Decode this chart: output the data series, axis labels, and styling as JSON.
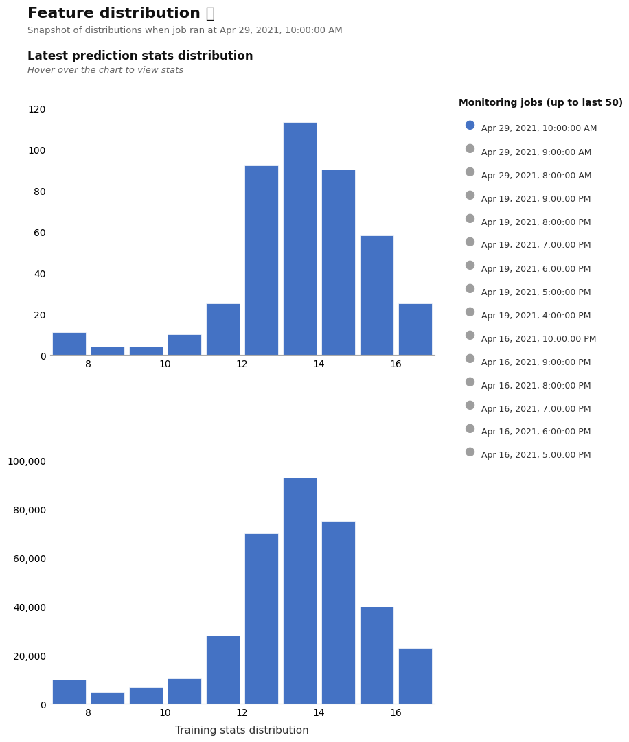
{
  "title": "Feature distribution ❓",
  "subtitle": "Snapshot of distributions when job ran at Apr 29, 2021, 10:00:00 AM",
  "section_title": "Latest prediction stats distribution",
  "section_subtitle": "Hover over the chart to view stats",
  "bar_color": "#4472C4",
  "background_color": "#ffffff",
  "top_hist": {
    "bin_centers": [
      7.5,
      8.5,
      9.5,
      10.5,
      11.5,
      12.5,
      13.5,
      14.5,
      15.5,
      16.5
    ],
    "values": [
      11,
      4,
      4,
      10,
      25,
      92,
      113,
      90,
      58,
      25
    ],
    "xlim": [
      7,
      17
    ],
    "ylim": [
      0,
      130
    ],
    "yticks": [
      0,
      20,
      40,
      60,
      80,
      100,
      120
    ],
    "xticks": [
      8,
      10,
      12,
      14,
      16
    ]
  },
  "bottom_hist": {
    "bin_centers": [
      7.5,
      8.5,
      9.5,
      10.5,
      11.5,
      12.5,
      13.5,
      14.5,
      15.5,
      16.5
    ],
    "values": [
      10000,
      5000,
      7000,
      10500,
      28000,
      70000,
      93000,
      75000,
      40000,
      23000
    ],
    "xlim": [
      7,
      17
    ],
    "ylim": [
      0,
      110000
    ],
    "yticks": [
      0,
      20000,
      40000,
      60000,
      80000,
      100000
    ],
    "xticks": [
      8,
      10,
      12,
      14,
      16
    ],
    "xlabel": "Training stats distribution"
  },
  "legend": {
    "title": "Monitoring jobs (up to last 50)",
    "entries": [
      {
        "label": "Apr 29, 2021, 10:00:00 AM",
        "color": "#4472C4"
      },
      {
        "label": "Apr 29, 2021, 9:00:00 AM",
        "color": "#9E9E9E"
      },
      {
        "label": "Apr 29, 2021, 8:00:00 AM",
        "color": "#9E9E9E"
      },
      {
        "label": "Apr 19, 2021, 9:00:00 PM",
        "color": "#9E9E9E"
      },
      {
        "label": "Apr 19, 2021, 8:00:00 PM",
        "color": "#9E9E9E"
      },
      {
        "label": "Apr 19, 2021, 7:00:00 PM",
        "color": "#9E9E9E"
      },
      {
        "label": "Apr 19, 2021, 6:00:00 PM",
        "color": "#9E9E9E"
      },
      {
        "label": "Apr 19, 2021, 5:00:00 PM",
        "color": "#9E9E9E"
      },
      {
        "label": "Apr 19, 2021, 4:00:00 PM",
        "color": "#9E9E9E"
      },
      {
        "label": "Apr 16, 2021, 10:00:00 PM",
        "color": "#9E9E9E"
      },
      {
        "label": "Apr 16, 2021, 9:00:00 PM",
        "color": "#9E9E9E"
      },
      {
        "label": "Apr 16, 2021, 8:00:00 PM",
        "color": "#9E9E9E"
      },
      {
        "label": "Apr 16, 2021, 7:00:00 PM",
        "color": "#9E9E9E"
      },
      {
        "label": "Apr 16, 2021, 6:00:00 PM",
        "color": "#9E9E9E"
      },
      {
        "label": "Apr 16, 2021, 5:00:00 PM",
        "color": "#9E9E9E"
      }
    ]
  }
}
